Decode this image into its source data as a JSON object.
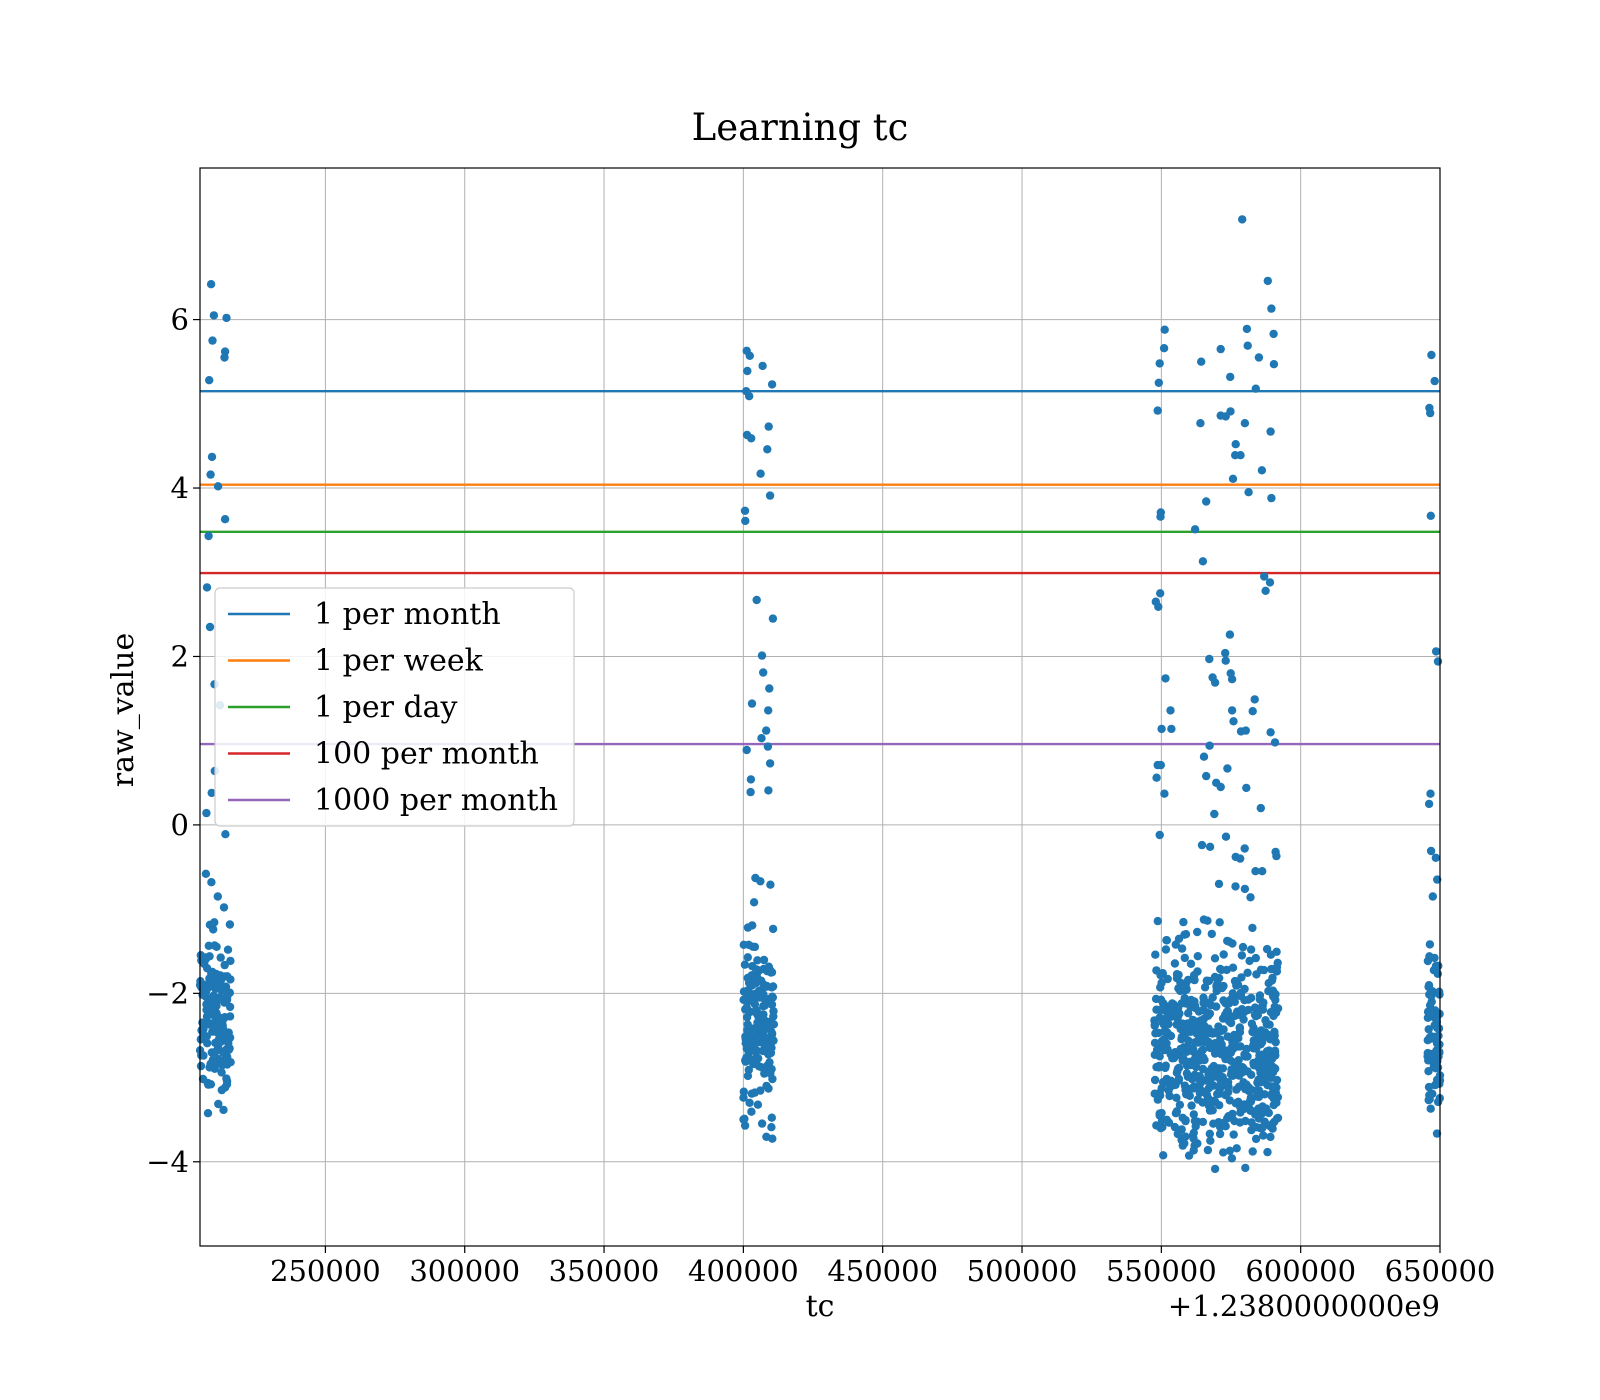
{
  "chart_data": {
    "type": "scatter",
    "title": "Learning tc",
    "xlabel": "tc",
    "ylabel": "raw_value",
    "x_offset_label": "+1.2380000000e9",
    "x_offset": 1238000000,
    "xlim": [
      205000,
      650000
    ],
    "ylim": [
      -5,
      7.8
    ],
    "x_ticks": [
      250000,
      300000,
      350000,
      400000,
      450000,
      500000,
      550000,
      600000,
      650000
    ],
    "x_tick_labels": [
      "250000",
      "300000",
      "350000",
      "400000",
      "450000",
      "500000",
      "550000",
      "600000",
      "650000"
    ],
    "y_ticks": [
      -4,
      -2,
      0,
      2,
      4,
      6
    ],
    "y_tick_labels": [
      "−4",
      "−2",
      "0",
      "2",
      "4",
      "6"
    ],
    "grid": true,
    "legend_position": "center-left",
    "hlines": [
      {
        "name": "1 per month",
        "y": 5.15,
        "color": "#1f77b4"
      },
      {
        "name": "1 per week",
        "y": 4.04,
        "color": "#ff7f0e"
      },
      {
        "name": "1 per day",
        "y": 3.48,
        "color": "#2ca02c"
      },
      {
        "name": "100 per month",
        "y": 2.99,
        "color": "#d62728"
      },
      {
        "name": "1000 per month",
        "y": 0.96,
        "color": "#9467bd"
      }
    ],
    "scatter_color": "#1f77b4",
    "points": [
      [
        209000,
        6.42
      ],
      [
        210000,
        6.05
      ],
      [
        209500,
        5.75
      ],
      [
        214500,
        6.02
      ],
      [
        214000,
        5.62
      ],
      [
        213800,
        5.55
      ],
      [
        208300,
        5.28
      ],
      [
        209300,
        4.37
      ],
      [
        208800,
        4.16
      ],
      [
        211500,
        4.02
      ],
      [
        214000,
        3.63
      ],
      [
        208100,
        3.43
      ],
      [
        207500,
        2.82
      ],
      [
        208600,
        2.35
      ],
      [
        210200,
        1.67
      ],
      [
        212200,
        1.42
      ],
      [
        210300,
        0.64
      ],
      [
        209200,
        0.38
      ],
      [
        207300,
        0.14
      ],
      [
        214100,
        -0.11
      ],
      [
        207100,
        -0.58
      ],
      [
        209100,
        -0.68
      ],
      [
        211400,
        -0.85
      ],
      [
        213600,
        -0.98
      ],
      [
        401200,
        5.63
      ],
      [
        402300,
        5.57
      ],
      [
        401400,
        5.39
      ],
      [
        406900,
        5.45
      ],
      [
        410300,
        5.23
      ],
      [
        401000,
        5.15
      ],
      [
        402100,
        5.09
      ],
      [
        409100,
        4.73
      ],
      [
        401300,
        4.63
      ],
      [
        402800,
        4.59
      ],
      [
        408600,
        4.46
      ],
      [
        406200,
        4.17
      ],
      [
        409600,
        3.91
      ],
      [
        400600,
        3.73
      ],
      [
        400700,
        3.61
      ],
      [
        404800,
        2.67
      ],
      [
        410600,
        2.45
      ],
      [
        406700,
        2.01
      ],
      [
        407100,
        1.81
      ],
      [
        409300,
        1.62
      ],
      [
        403100,
        1.44
      ],
      [
        408900,
        1.36
      ],
      [
        408200,
        1.12
      ],
      [
        406500,
        1.03
      ],
      [
        408800,
        0.93
      ],
      [
        401200,
        0.89
      ],
      [
        409600,
        0.73
      ],
      [
        402700,
        0.54
      ],
      [
        402600,
        0.39
      ],
      [
        409000,
        0.41
      ],
      [
        404300,
        -0.63
      ],
      [
        406100,
        -0.67
      ],
      [
        409700,
        -0.71
      ],
      [
        551200,
        5.88
      ],
      [
        551000,
        5.66
      ],
      [
        549400,
        5.48
      ],
      [
        549100,
        5.25
      ],
      [
        548700,
        4.92
      ],
      [
        549800,
        3.71
      ],
      [
        549700,
        3.66
      ],
      [
        548000,
        2.65
      ],
      [
        548900,
        2.59
      ],
      [
        549600,
        2.75
      ],
      [
        551500,
        1.74
      ],
      [
        553300,
        1.36
      ],
      [
        550100,
        1.14
      ],
      [
        553600,
        1.14
      ],
      [
        548700,
        0.71
      ],
      [
        549800,
        0.71
      ],
      [
        548300,
        0.56
      ],
      [
        551100,
        0.37
      ],
      [
        549400,
        -0.12
      ],
      [
        564300,
        5.5
      ],
      [
        571300,
        5.65
      ],
      [
        574700,
        5.32
      ],
      [
        580700,
        5.89
      ],
      [
        581000,
        5.69
      ],
      [
        585000,
        5.55
      ],
      [
        590300,
        5.83
      ],
      [
        590400,
        5.47
      ],
      [
        579000,
        7.19
      ],
      [
        588200,
        6.46
      ],
      [
        589500,
        6.13
      ],
      [
        583900,
        5.18
      ],
      [
        564000,
        4.77
      ],
      [
        573100,
        4.85
      ],
      [
        574800,
        4.91
      ],
      [
        571300,
        4.86
      ],
      [
        580000,
        4.77
      ],
      [
        589200,
        4.67
      ],
      [
        576700,
        4.52
      ],
      [
        578400,
        4.39
      ],
      [
        576500,
        4.39
      ],
      [
        586100,
        4.21
      ],
      [
        575700,
        4.11
      ],
      [
        581300,
        3.95
      ],
      [
        589500,
        3.88
      ],
      [
        566100,
        3.84
      ],
      [
        562100,
        3.51
      ],
      [
        564900,
        3.13
      ],
      [
        586900,
        2.95
      ],
      [
        589000,
        2.88
      ],
      [
        587400,
        2.78
      ],
      [
        574600,
        2.26
      ],
      [
        572900,
        2.04
      ],
      [
        567200,
        1.97
      ],
      [
        573100,
        1.95
      ],
      [
        574900,
        1.8
      ],
      [
        568400,
        1.75
      ],
      [
        575400,
        1.73
      ],
      [
        569300,
        1.69
      ],
      [
        583500,
        1.49
      ],
      [
        575400,
        1.36
      ],
      [
        582800,
        1.35
      ],
      [
        578600,
        1.11
      ],
      [
        580300,
        1.12
      ],
      [
        575900,
        1.23
      ],
      [
        589200,
        1.1
      ],
      [
        590800,
        0.98
      ],
      [
        567300,
        0.94
      ],
      [
        565300,
        0.81
      ],
      [
        573700,
        0.67
      ],
      [
        566100,
        0.58
      ],
      [
        569700,
        0.5
      ],
      [
        571300,
        0.45
      ],
      [
        580500,
        0.44
      ],
      [
        569000,
        0.13
      ],
      [
        585700,
        0.2
      ],
      [
        564600,
        -0.24
      ],
      [
        567500,
        -0.26
      ],
      [
        573200,
        -0.14
      ],
      [
        579900,
        -0.28
      ],
      [
        591000,
        -0.32
      ],
      [
        591300,
        -0.37
      ],
      [
        576700,
        -0.38
      ],
      [
        578300,
        -0.4
      ],
      [
        583800,
        -0.55
      ],
      [
        586200,
        -0.55
      ],
      [
        570700,
        -0.7
      ],
      [
        576600,
        -0.73
      ],
      [
        580000,
        -0.76
      ],
      [
        582000,
        -0.86
      ],
      [
        646900,
        5.58
      ],
      [
        648100,
        5.27
      ],
      [
        646200,
        4.95
      ],
      [
        646500,
        4.89
      ],
      [
        646700,
        3.67
      ],
      [
        648600,
        2.06
      ],
      [
        649300,
        1.94
      ],
      [
        646600,
        0.37
      ],
      [
        646100,
        0.25
      ],
      [
        646800,
        -0.31
      ],
      [
        648500,
        -0.39
      ],
      [
        649000,
        -0.65
      ],
      [
        647400,
        -0.85
      ]
    ],
    "clusters": [
      {
        "x_range": [
          205000,
          216000
        ],
        "y_range": [
          -3.7,
          -0.9
        ],
        "count": 150
      },
      {
        "x_range": [
          400000,
          411000
        ],
        "y_range": [
          -3.9,
          -0.8
        ],
        "count": 170
      },
      {
        "x_range": [
          547500,
          592000
        ],
        "y_range": [
          -4.4,
          -0.9
        ],
        "count": 650
      },
      {
        "x_range": [
          645500,
          650000
        ],
        "y_range": [
          -4.1,
          -0.9
        ],
        "count": 80
      }
    ]
  }
}
